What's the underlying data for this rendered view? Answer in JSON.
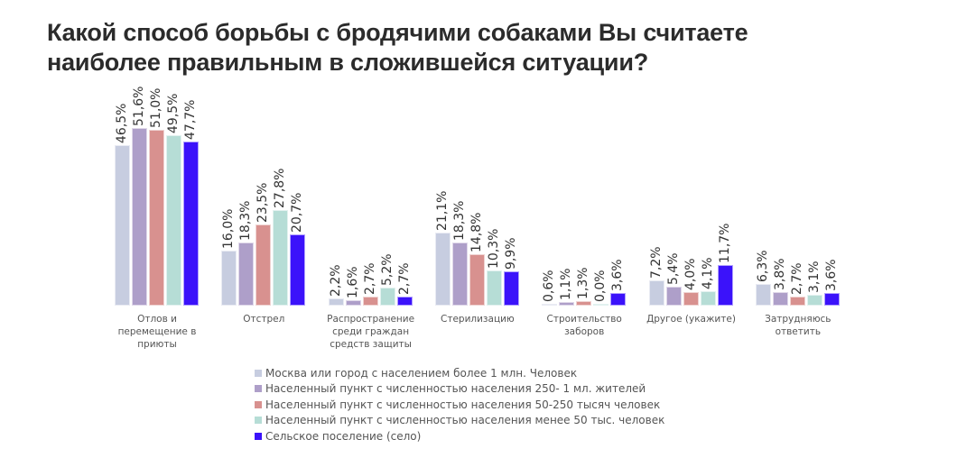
{
  "title": "Какой способ борьбы с бродячими собаками Вы считаете наиболее правильным в сложившейся ситуации?",
  "title_lines": [
    "Какой способ борьбы с бродячими собаками Вы считаете",
    "наиболее правильным в сложившейся ситуации?"
  ],
  "colors": [
    "#c7cde0",
    "#ae9fc9",
    "#d8918f",
    "#b6ddd6",
    "#3b12fa"
  ],
  "chart_data": {
    "type": "bar",
    "title": "Какой способ борьбы с бродячими собаками Вы считаете наиболее правильным в сложившейся ситуации?",
    "xlabel": "",
    "ylabel": "",
    "grid": false,
    "legend_position": "bottom",
    "categories": [
      "Отлов и перемещение в приюты",
      "Отстрел",
      "Распространение среди граждан средств защиты",
      "Стерилизацию",
      "Строительство заборов",
      "Другое (укажите)",
      "Затрудняюсь ответить"
    ],
    "category_lines": [
      [
        "Отлов и",
        "перемещение в",
        "приюты"
      ],
      [
        "Отстрел"
      ],
      [
        "Распространение",
        "среди граждан",
        "средств защиты"
      ],
      [
        "Стерилизацию"
      ],
      [
        "Строительство",
        "заборов"
      ],
      [
        "Другое (укажите)"
      ],
      [
        "Затрудняюсь",
        "ответить"
      ]
    ],
    "series": [
      {
        "name": "Москва или город с населением более 1 млн. Человек",
        "values": [
          46.5,
          16.0,
          2.2,
          21.1,
          0.6,
          7.2,
          6.3
        ],
        "labels": [
          "46,5%",
          "16,0%",
          "2,2%",
          "21,1%",
          "0,6%",
          "7,2%",
          "6,3%"
        ]
      },
      {
        "name": "Населенный пункт с численностью населения 250- 1 мл. жителей",
        "values": [
          51.6,
          18.3,
          1.6,
          18.3,
          1.1,
          5.4,
          3.8
        ],
        "labels": [
          "51,6%",
          "18,3%",
          "1,6%",
          "18,3%",
          "1,1%",
          "5,4%",
          "3,8%"
        ]
      },
      {
        "name": "Населенный пункт с численностью населения 50-250 тысяч человек",
        "values": [
          51.0,
          23.5,
          2.7,
          14.8,
          1.3,
          4.0,
          2.7
        ],
        "labels": [
          "51,0%",
          "23,5%",
          "2,7%",
          "14,8%",
          "1,3%",
          "4,0%",
          "2,7%"
        ]
      },
      {
        "name": "Населенный пункт с численностью населения менее 50 тыс. человек",
        "values": [
          49.5,
          27.8,
          5.2,
          10.3,
          0.0,
          4.1,
          3.1
        ],
        "labels": [
          "49,5%",
          "27,8%",
          "5,2%",
          "10,3%",
          "0,0%",
          "4,1%",
          "3,1%"
        ]
      },
      {
        "name": "Сельское поселение (село)",
        "values": [
          47.7,
          20.7,
          2.7,
          9.9,
          3.6,
          11.7,
          3.6
        ],
        "labels": [
          "47,7%",
          "20,7%",
          "2,7%",
          "9,9%",
          "3,6%",
          "11,7%",
          "3,6%"
        ]
      }
    ],
    "ylim": [
      0,
      55
    ],
    "unit": "%"
  }
}
